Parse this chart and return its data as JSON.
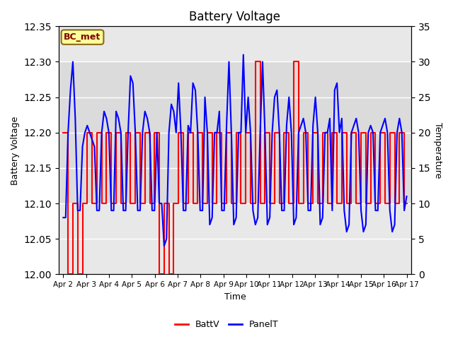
{
  "title": "Battery Voltage",
  "xlabel": "Time",
  "ylabel_left": "Battery Voltage",
  "ylabel_right": "Temperature",
  "ylim_left": [
    12.0,
    12.35
  ],
  "ylim_right": [
    0,
    35
  ],
  "yticks_left": [
    12.0,
    12.05,
    12.1,
    12.15,
    12.2,
    12.25,
    12.3,
    12.35
  ],
  "yticks_right": [
    0,
    5,
    10,
    15,
    20,
    25,
    30,
    35
  ],
  "xtick_labels": [
    "Apr 2",
    "Apr 3",
    "Apr 4",
    "Apr 5",
    "Apr 6",
    "Apr 7",
    "Apr 8",
    "Apr 9",
    "Apr 10",
    "Apr 11",
    "Apr 12",
    "Apr 13",
    "Apr 14",
    "Apr 15",
    "Apr 16",
    "Apr 17"
  ],
  "fig_bg_color": "#ffffff",
  "plot_bg_color": "#e8e8e8",
  "band_color": "#d8d8d8",
  "label_box_text": "BC_met",
  "label_box_bg": "#ffff99",
  "label_box_edge": "#8B6914",
  "label_box_text_color": "#800000",
  "batt_color": "red",
  "panel_color": "blue",
  "batt_label": "BattV",
  "panel_label": "PanelT",
  "batt_lw": 1.5,
  "panel_lw": 1.5,
  "batt_v": [
    12.2,
    12.2,
    12.0,
    12.0,
    12.1,
    12.1,
    12.0,
    12.0,
    12.1,
    12.1,
    12.2,
    12.2,
    12.1,
    12.1,
    12.2,
    12.2,
    12.1,
    12.1,
    12.2,
    12.2,
    12.1,
    12.1,
    12.2,
    12.2,
    12.1,
    12.1,
    12.2,
    12.2,
    12.1,
    12.1,
    12.2,
    12.2,
    12.1,
    12.1,
    12.2,
    12.2,
    12.1,
    12.1,
    12.2,
    12.2,
    12.0,
    12.0,
    12.1,
    12.1,
    12.0,
    12.0,
    12.1,
    12.1,
    12.2,
    12.2,
    12.1,
    12.1,
    12.2,
    12.2,
    12.1,
    12.1,
    12.2,
    12.2,
    12.1,
    12.1,
    12.2,
    12.2,
    12.1,
    12.1,
    12.2,
    12.2,
    12.1,
    12.1,
    12.2,
    12.2,
    12.1,
    12.1,
    12.2,
    12.2,
    12.1,
    12.1,
    12.2,
    12.2,
    12.1,
    12.1,
    12.3,
    12.3,
    12.1,
    12.1,
    12.2,
    12.2,
    12.1,
    12.1,
    12.2,
    12.2,
    12.1,
    12.1,
    12.2,
    12.2,
    12.1,
    12.1,
    12.3,
    12.3,
    12.1,
    12.1,
    12.2,
    12.2,
    12.1,
    12.1,
    12.2,
    12.2,
    12.1,
    12.1,
    12.2,
    12.2,
    12.1,
    12.1,
    12.2,
    12.2,
    12.1,
    12.1,
    12.2,
    12.2,
    12.1,
    12.1,
    12.2,
    12.2,
    12.1,
    12.1,
    12.2,
    12.2,
    12.1,
    12.1,
    12.2,
    12.2,
    12.1,
    12.1,
    12.2,
    12.2,
    12.1,
    12.1,
    12.2,
    12.2,
    12.1,
    12.1,
    12.2,
    12.2,
    12.1,
    12.1
  ],
  "panel_t": [
    8,
    8,
    20,
    26,
    30,
    22,
    9,
    9,
    18,
    20,
    21,
    20,
    19,
    18,
    9,
    9,
    20,
    23,
    22,
    20,
    9,
    9,
    23,
    22,
    20,
    9,
    9,
    20,
    28,
    27,
    20,
    9,
    9,
    20,
    23,
    22,
    20,
    9,
    9,
    20,
    10,
    10,
    4,
    5,
    20,
    24,
    23,
    20,
    27,
    20,
    9,
    9,
    21,
    20,
    27,
    26,
    20,
    9,
    9,
    25,
    20,
    7,
    8,
    20,
    20,
    23,
    9,
    9,
    21,
    30,
    20,
    7,
    8,
    20,
    20,
    31,
    20,
    25,
    20,
    9,
    7,
    8,
    20,
    30,
    20,
    7,
    8,
    20,
    25,
    26,
    20,
    9,
    9,
    21,
    25,
    20,
    7,
    8,
    20,
    21,
    22,
    20,
    9,
    9,
    21,
    25,
    20,
    7,
    8,
    20,
    20,
    22,
    9,
    26,
    27,
    20,
    22,
    9,
    6,
    7,
    20,
    21,
    22,
    20,
    9,
    6,
    7,
    20,
    21,
    20,
    9,
    9,
    20,
    21,
    22,
    20,
    9,
    6,
    7,
    20,
    22,
    20,
    9,
    11
  ]
}
